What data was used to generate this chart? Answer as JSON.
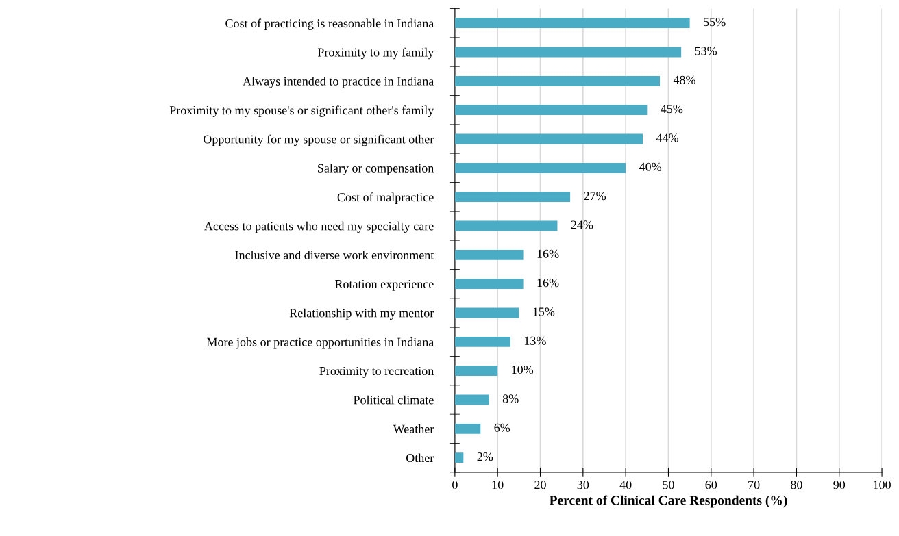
{
  "chart_data": {
    "type": "bar",
    "orientation": "horizontal",
    "xlabel": "Percent of Clinical Care Respondents (%)",
    "categories": [
      "Cost of practicing is reasonable in Indiana",
      "Proximity to my family",
      "Always intended to practice in Indiana",
      "Proximity to my spouse's or significant other's family",
      "Opportunity for my spouse or significant other",
      "Salary or compensation",
      "Cost of malpractice",
      "Access to patients who need my specialty care",
      "Inclusive and diverse work environment",
      "Rotation experience",
      "Relationship with my mentor",
      "More jobs or practice opportunities in Indiana",
      "Proximity to recreation",
      "Political climate",
      "Weather",
      "Other"
    ],
    "values": [
      55,
      53,
      48,
      45,
      44,
      40,
      27,
      24,
      16,
      16,
      15,
      13,
      10,
      8,
      6,
      2
    ],
    "value_labels": [
      "55%",
      "53%",
      "48%",
      "45%",
      "44%",
      "40%",
      "27%",
      "24%",
      "16%",
      "16%",
      "15%",
      "13%",
      "10%",
      "8%",
      "6%",
      "2%"
    ],
    "color": "#4bacc6",
    "xlim": [
      0,
      100
    ],
    "xticks": [
      0,
      10,
      20,
      30,
      40,
      50,
      60,
      70,
      80,
      90,
      100
    ],
    "grid": "x",
    "legend": false
  }
}
